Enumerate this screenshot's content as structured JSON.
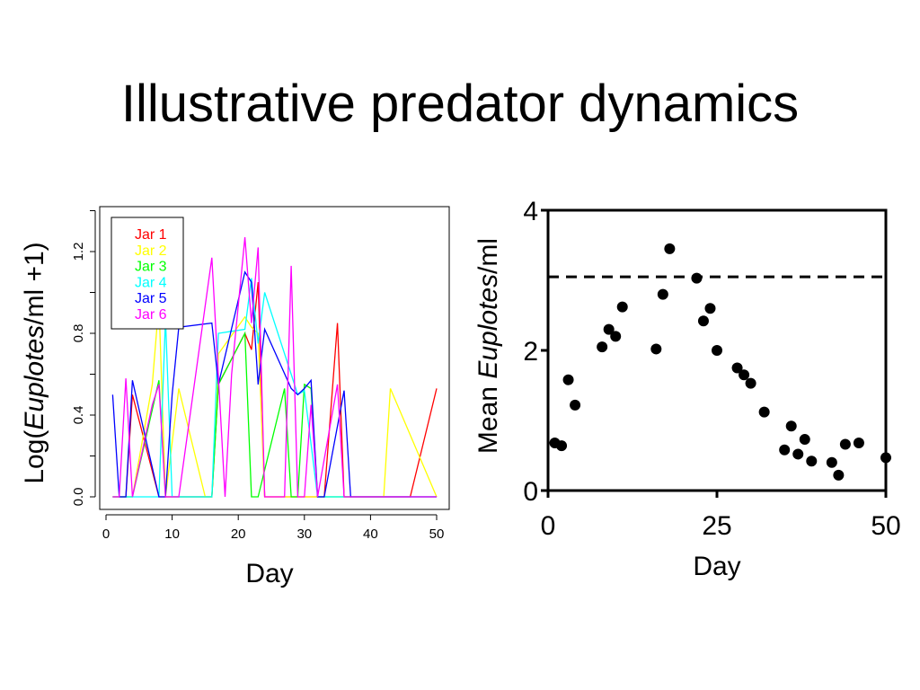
{
  "slide": {
    "title": "Illustrative predator dynamics"
  },
  "chart_data": [
    {
      "type": "line",
      "xlabel": "Day",
      "ylabel": {
        "prefix": "Log(",
        "italic": "Euplotes",
        "suffix": "/ml +1)"
      },
      "xlim": [
        0,
        50
      ],
      "ylim": [
        0,
        1.4
      ],
      "xticks": [
        0,
        10,
        20,
        30,
        40,
        50
      ],
      "yticks": [
        0.0,
        0.4,
        0.8,
        1.2
      ],
      "ytick_labels": [
        "0.0",
        "0.4",
        "0.8",
        "1.2"
      ],
      "legend": "top-left",
      "series": [
        {
          "name": "Jar 1",
          "color": "#ff0000",
          "x": [
            1,
            3,
            4,
            8,
            9,
            16,
            17,
            21,
            22,
            23,
            24,
            33,
            35,
            36,
            46,
            50
          ],
          "y": [
            0,
            0,
            0.5,
            0,
            0,
            0,
            0.55,
            0.8,
            0.72,
            1.05,
            0,
            0,
            0.85,
            0,
            0,
            0.53
          ]
        },
        {
          "name": "Jar 2",
          "color": "#ffff00",
          "x": [
            1,
            3,
            4,
            7,
            8,
            9,
            11,
            15,
            16,
            17,
            21,
            22,
            23,
            24,
            35,
            36,
            42,
            43,
            50
          ],
          "y": [
            0,
            0,
            0,
            0.55,
            0.95,
            0,
            0.53,
            0,
            0,
            0.7,
            0.88,
            0.83,
            0.8,
            0,
            0,
            0,
            0,
            0.53,
            0
          ]
        },
        {
          "name": "Jar 3",
          "color": "#00ff00",
          "x": [
            1,
            3,
            4,
            8,
            9,
            16,
            17,
            21,
            22,
            23,
            27,
            28,
            29,
            30,
            31,
            32,
            33,
            50
          ],
          "y": [
            0,
            0,
            0,
            0.57,
            0,
            0,
            0.55,
            0.8,
            0,
            0,
            0.53,
            0,
            0,
            0.55,
            0.53,
            0,
            0,
            0
          ]
        },
        {
          "name": "Jar 4",
          "color": "#00ffff",
          "x": [
            1,
            3,
            4,
            8,
            9,
            10,
            16,
            17,
            21,
            22,
            23,
            24,
            28,
            29,
            30,
            32,
            33,
            50
          ],
          "y": [
            0,
            0,
            0,
            0,
            0.87,
            0,
            0,
            0.8,
            0.82,
            1.07,
            0.75,
            1.0,
            0.6,
            0.5,
            0.52,
            0,
            0,
            0
          ]
        },
        {
          "name": "Jar 5",
          "color": "#0000ff",
          "x": [
            1,
            2,
            3,
            4,
            8,
            9,
            10,
            11,
            16,
            17,
            21,
            22,
            23,
            24,
            28,
            29,
            30,
            31,
            32,
            33,
            36,
            37,
            50
          ],
          "y": [
            0.5,
            0,
            0,
            0.57,
            0,
            0,
            0.5,
            0.83,
            0.85,
            0.55,
            1.1,
            1.05,
            0.55,
            0.82,
            0.53,
            0.5,
            0.53,
            0.57,
            0,
            0,
            0.52,
            0,
            0
          ]
        },
        {
          "name": "Jar 6",
          "color": "#ff00ff",
          "x": [
            1,
            2,
            3,
            4,
            7,
            8,
            9,
            10,
            11,
            14,
            16,
            18,
            19,
            21,
            22,
            23,
            24,
            27,
            28,
            29,
            30,
            31,
            32,
            35,
            36,
            38,
            50
          ],
          "y": [
            0,
            0,
            0.58,
            0,
            0.45,
            0.55,
            0,
            0,
            0,
            0.7,
            1.17,
            0,
            0.6,
            1.27,
            0.85,
            1.22,
            0,
            0,
            1.13,
            0,
            0,
            0.45,
            0,
            0.55,
            0,
            0,
            0
          ]
        }
      ]
    },
    {
      "type": "scatter",
      "xlabel": "Day",
      "ylabel": {
        "prefix": "Mean ",
        "italic": "Euplotes",
        "suffix": "/ml"
      },
      "xlim": [
        0,
        50
      ],
      "ylim": [
        0,
        4
      ],
      "xticks": [
        0,
        25,
        50
      ],
      "yticks": [
        0,
        2,
        4
      ],
      "reference_line": {
        "y": 3.05,
        "style": "dashed"
      },
      "points": {
        "x": [
          1,
          2,
          3,
          4,
          8,
          9,
          10,
          11,
          16,
          17,
          18,
          22,
          23,
          24,
          25,
          28,
          29,
          30,
          32,
          35,
          36,
          37,
          38,
          39,
          42,
          43,
          44,
          46,
          50
        ],
        "y": [
          0.68,
          0.64,
          1.58,
          1.22,
          2.05,
          2.3,
          2.2,
          2.62,
          2.02,
          2.8,
          3.45,
          3.03,
          2.42,
          2.6,
          2.0,
          1.75,
          1.65,
          1.53,
          1.12,
          0.58,
          0.92,
          0.52,
          0.73,
          0.42,
          0.4,
          0.22,
          0.66,
          0.68,
          0.47
        ]
      }
    }
  ]
}
